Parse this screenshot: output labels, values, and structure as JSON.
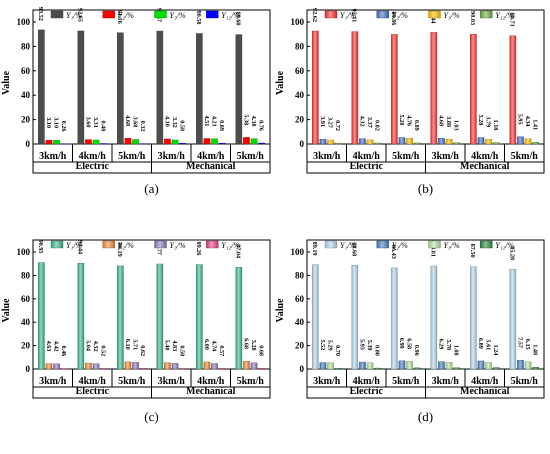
{
  "figure": {
    "ylabel": "Value",
    "ylim": [
      0,
      100
    ],
    "yticks": [
      0,
      20,
      40,
      60,
      80,
      100
    ],
    "categories": [
      "3km/h",
      "4km/h",
      "5km/h",
      "3km/h",
      "4km/h",
      "5km/h"
    ],
    "groups": [
      "Electric",
      "Mechanical"
    ],
    "legend_labels": [
      "Y₁/%",
      "Y₂/%",
      "Y₃/%",
      "Y₁₂/%"
    ]
  },
  "chart_data": [
    {
      "type": "bar",
      "panel_label": "(a)",
      "categories": [
        "3km/h",
        "4km/h",
        "5km/h",
        "3km/h",
        "4km/h",
        "5km/h"
      ],
      "groups": [
        "Electric",
        "Mechanical"
      ],
      "ylabel": "Value",
      "ylim": [
        0,
        100
      ],
      "grid": false,
      "legend_position": "top",
      "bar_style": "plain",
      "series": [
        {
          "name": "Y₁/%",
          "color": "#4d4d4d",
          "labels": [
            "93.52",
            "92.65",
            "91.16",
            "92.57",
            "90.58",
            "89.68"
          ],
          "values": [
            93.52,
            92.65,
            91.16,
            92.57,
            90.58,
            89.68
          ]
        },
        {
          "name": "Y₂/%",
          "color": "#ff0000",
          "labels": [
            "3.10",
            "3.60",
            "4.68",
            "4.10",
            "4.51",
            "5.38"
          ],
          "values": [
            3.1,
            3.6,
            4.68,
            4.1,
            4.51,
            5.38
          ]
        },
        {
          "name": "Y₃/%",
          "color": "#00dd00",
          "labels": [
            "3.10",
            "3.31",
            "3.68",
            "3.32",
            "4.21",
            "4.38"
          ],
          "values": [
            3.1,
            3.31,
            3.68,
            3.32,
            4.21,
            4.38
          ]
        },
        {
          "name": "Y₁₂/%",
          "color": "#0000ff",
          "labels": [
            "0.26",
            "0.40",
            "0.32",
            "0.58",
            "0.69",
            "0.76"
          ],
          "values": [
            0.26,
            0.4,
            0.32,
            0.58,
            0.69,
            0.76
          ]
        }
      ]
    },
    {
      "type": "bar",
      "panel_label": "(b)",
      "categories": [
        "3km/h",
        "4km/h",
        "5km/h",
        "3km/h",
        "4km/h",
        "5km/h"
      ],
      "groups": [
        "Electric",
        "Mechanical"
      ],
      "ylabel": "Value",
      "ylim": [
        0,
        100
      ],
      "grid": false,
      "legend_position": "top",
      "bar_style": "shaded",
      "series": [
        {
          "name": "Y₁/%",
          "color": "#ff3333",
          "labels": [
            "92.62",
            "92.11",
            "89.86",
            "91.44",
            "90.03",
            "88.71"
          ],
          "values": [
            92.62,
            92.11,
            89.86,
            91.44,
            90.03,
            88.71
          ]
        },
        {
          "name": "Y₂/%",
          "color": "#4472c4",
          "labels": [
            "3.91",
            "4.32",
            "5.28",
            "4.68",
            "5.28",
            "5.95"
          ],
          "values": [
            3.91,
            4.32,
            5.28,
            4.68,
            5.28,
            5.95
          ]
        },
        {
          "name": "Y₃/%",
          "color": "#ffc000",
          "labels": [
            "3.27",
            "3.37",
            "4.76",
            "3.88",
            "3.79",
            "4.34"
          ],
          "values": [
            3.27,
            3.37,
            4.76,
            3.88,
            3.79,
            4.34
          ]
        },
        {
          "name": "Y₁₂/%",
          "color": "#70ad47",
          "labels": [
            "0.72",
            "0.82",
            "0.89",
            "1.03",
            "1.18",
            "1.41"
          ],
          "values": [
            0.72,
            0.82,
            0.89,
            1.03,
            1.18,
            1.41
          ]
        }
      ]
    },
    {
      "type": "bar",
      "panel_label": "(c)",
      "categories": [
        "3km/h",
        "4km/h",
        "5km/h",
        "3km/h",
        "4km/h",
        "5km/h"
      ],
      "groups": [
        "Electric",
        "Mechanical"
      ],
      "ylabel": "Value",
      "ylim": [
        0,
        100
      ],
      "grid": false,
      "legend_position": "top",
      "bar_style": "shaded",
      "series": [
        {
          "name": "Y₁/%",
          "color": "#3cb98a",
          "labels": [
            "90.95",
            "90.44",
            "88.19",
            "89.77",
            "89.26",
            "87.04"
          ],
          "values": [
            90.95,
            90.44,
            88.19,
            89.77,
            89.26,
            87.04
          ]
        },
        {
          "name": "Y₂/%",
          "color": "#f28c38",
          "labels": [
            "4.63",
            "5.04",
            "6.10",
            "5.40",
            "6.00",
            "6.68"
          ],
          "values": [
            4.63,
            5.04,
            6.1,
            5.4,
            6.0,
            6.68
          ]
        },
        {
          "name": "Y₃/%",
          "color": "#8e7cc3",
          "labels": [
            "4.42",
            "4.52",
            "5.71",
            "4.83",
            "4.74",
            "5.28"
          ],
          "values": [
            4.42,
            4.52,
            5.71,
            4.83,
            4.74,
            5.28
          ]
        },
        {
          "name": "Y₁₂/%",
          "color": "#e8418a",
          "labels": [
            "0.46",
            "0.52",
            "0.62",
            "0.50",
            "0.57",
            "0.68"
          ],
          "values": [
            0.46,
            0.52,
            0.62,
            0.5,
            0.57,
            0.68
          ]
        }
      ]
    },
    {
      "type": "bar",
      "panel_label": "(d)",
      "categories": [
        "3km/h",
        "4km/h",
        "5km/h",
        "3km/h",
        "4km/h",
        "5km/h"
      ],
      "groups": [
        "Electric",
        "Mechanical"
      ],
      "ylabel": "Value",
      "ylim": [
        0,
        100
      ],
      "grid": false,
      "legend_position": "top",
      "bar_style": "shaded",
      "series": [
        {
          "name": "Y₁/%",
          "color": "#b4d7ec",
          "labels": [
            "89.19",
            "88.68",
            "86.43",
            "88.01",
            "87.50",
            "85.28"
          ],
          "values": [
            89.19,
            88.68,
            86.43,
            88.01,
            87.5,
            85.28
          ]
        },
        {
          "name": "Y₂/%",
          "color": "#4a7fbf",
          "labels": [
            "5.52",
            "5.93",
            "6.99",
            "6.29",
            "6.89",
            "7.57"
          ],
          "values": [
            5.52,
            5.93,
            6.99,
            6.29,
            6.89,
            7.57
          ]
        },
        {
          "name": "Y₃/%",
          "color": "#b7e3a0",
          "labels": [
            "5.29",
            "5.39",
            "6.58",
            "5.70",
            "5.61",
            "6.15"
          ],
          "values": [
            5.29,
            5.39,
            6.58,
            5.7,
            5.61,
            6.15
          ]
        },
        {
          "name": "Y₁₂/%",
          "color": "#2e8b3e",
          "labels": [
            "0.70",
            "0.80",
            "0.96",
            "1.08",
            "1.24",
            "1.48"
          ],
          "values": [
            0.7,
            0.8,
            0.96,
            1.08,
            1.24,
            1.48
          ]
        }
      ]
    }
  ]
}
